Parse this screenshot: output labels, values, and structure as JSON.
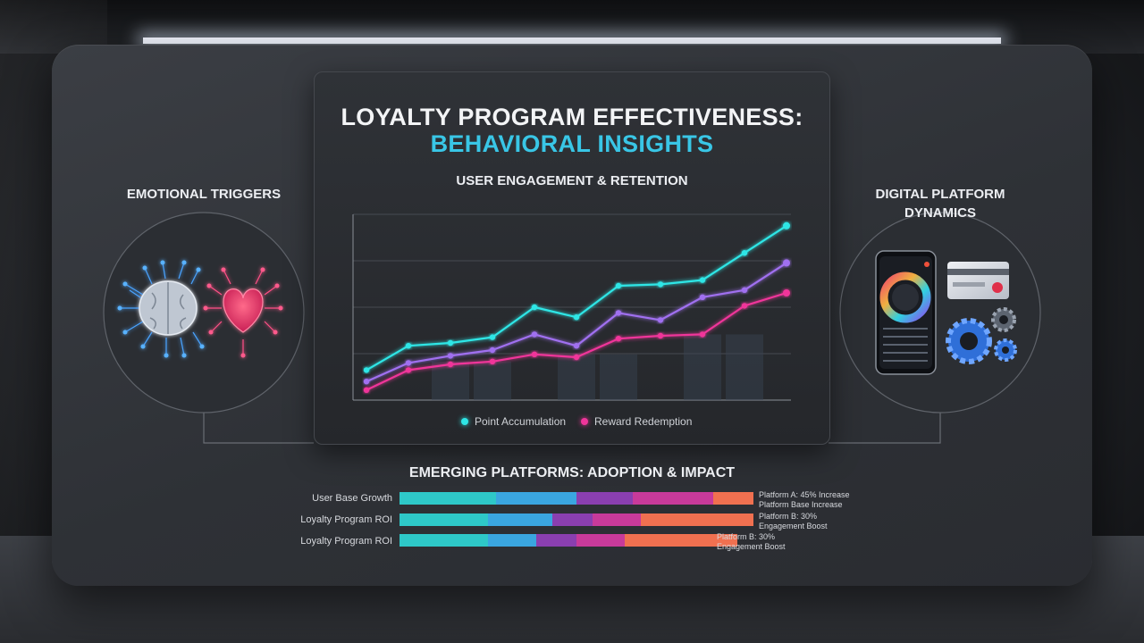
{
  "header": {
    "title_line1": "LOYALTY PROGRAM EFFECTIVENESS:",
    "title_line2": "BEHAVIORAL INSIGHTS"
  },
  "left_panel": {
    "title": "EMOTIONAL TRIGGERS",
    "icons": [
      "brain-icon",
      "heart-icon"
    ]
  },
  "right_panel": {
    "title_line1": "DIGITAL PLATFORM",
    "title_line2": "DYNAMICS",
    "icons": [
      "smartphone-icon",
      "credit-card-icon",
      "gears-icon"
    ]
  },
  "colors": {
    "cyan": "#2ee6e6",
    "purple": "#a070f0",
    "pink": "#f0359a",
    "title_accent": "#39c6e6"
  },
  "chart_data": [
    {
      "type": "line",
      "title": "USER ENGAGEMENT & RETENTION",
      "x": [
        1,
        2,
        3,
        4,
        5,
        6,
        7,
        8,
        9,
        10,
        11
      ],
      "series": [
        {
          "name": "Point Accumulation",
          "color": "#2ee6e6",
          "values": [
            21,
            38,
            40,
            44,
            65,
            58,
            80,
            81,
            84,
            103,
            122
          ]
        },
        {
          "name": "",
          "color": "#a070f0",
          "values": [
            13,
            26,
            31,
            35,
            46,
            38,
            61,
            56,
            72,
            77,
            96
          ]
        },
        {
          "name": "Reward Redemption",
          "color": "#f0359a",
          "values": [
            7,
            21,
            25,
            27,
            32,
            30,
            43,
            45,
            46,
            66,
            75
          ]
        }
      ],
      "background_columns": [
        {
          "x": 3,
          "value": 27
        },
        {
          "x": 4,
          "value": 27
        },
        {
          "x": 6,
          "value": 32
        },
        {
          "x": 7,
          "value": 32
        },
        {
          "x": 9,
          "value": 46
        },
        {
          "x": 10,
          "value": 46
        }
      ],
      "ylim": [
        0,
        130
      ],
      "grid": true,
      "legend": "bottom"
    },
    {
      "type": "bar",
      "title": "EMERGING PLATFORMS: ADOPTION & IMPACT",
      "categories": [
        "User Base Growth",
        "Loyalty Program ROI",
        "Loyalty Program ROI"
      ],
      "segment_colors": [
        "#2ec8c8",
        "#3aa6e0",
        "#8a3fb0",
        "#c83a9a",
        "#f07050"
      ],
      "series": [
        {
          "segments": [
            0.12,
            0.1,
            0.07,
            0.1,
            0.05
          ],
          "total": 0.44,
          "note": [
            "Platform A: 45% Increase",
            "Platform Base Increase"
          ]
        },
        {
          "segments": [
            0.11,
            0.08,
            0.05,
            0.06,
            0.14
          ],
          "total": 0.44,
          "note": [
            "Platform B: 30%",
            "Engagement Boost"
          ]
        },
        {
          "segments": [
            0.11,
            0.06,
            0.05,
            0.06,
            0.14
          ],
          "total": 0.42,
          "note": [
            "Platform B: 30%",
            "Engagement Boost"
          ]
        }
      ]
    }
  ]
}
